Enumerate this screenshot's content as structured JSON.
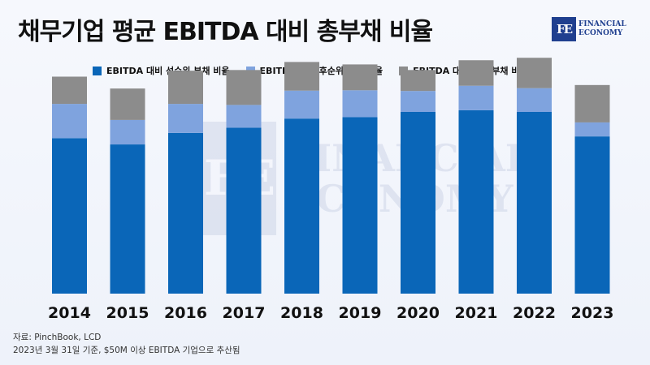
{
  "title": "채무기업 평균 EBITDA 대비 총부채 비율",
  "logo": {
    "mark": "FE",
    "line1": "FINANCIAL",
    "line2": "ECONOMY"
  },
  "source": {
    "line1": "자료: PinchBook, LCD",
    "line2": "2023년 3월 31일 기준, $50M 이상 EBITDA 기업으로 추산됨"
  },
  "colors": {
    "senior": "#0a66b8",
    "subordinated": "#7fa3de",
    "other": "#8c8c8c"
  },
  "chart_data": {
    "type": "bar",
    "stacked": true,
    "title": "채무기업 평균 EBITDA 대비 총부채 비율",
    "xlabel": "",
    "ylabel": "",
    "categories": [
      "2014",
      "2015",
      "2016",
      "2017",
      "2018",
      "2019",
      "2020",
      "2021",
      "2022",
      "2023"
    ],
    "series": [
      {
        "name": "EBITDA 대비 선순위 부채 비율",
        "values": [
          4.45,
          4.27,
          4.6,
          4.75,
          5.01,
          5.05,
          5.2,
          5.25,
          5.2,
          4.5
        ]
      },
      {
        "name": "EBITDA 대비 후순위 부채 비율",
        "values": [
          0.98,
          0.7,
          0.83,
          0.65,
          0.8,
          0.77,
          0.6,
          0.7,
          0.68,
          0.4
        ]
      },
      {
        "name": "EBITDA 대비 기타 부채 비율",
        "values": [
          0.78,
          0.9,
          0.95,
          1.0,
          0.82,
          0.74,
          0.6,
          0.73,
          0.87,
          1.07
        ]
      }
    ],
    "ylim": [
      0,
      6.5
    ],
    "grid": false,
    "legend_position": "top"
  }
}
